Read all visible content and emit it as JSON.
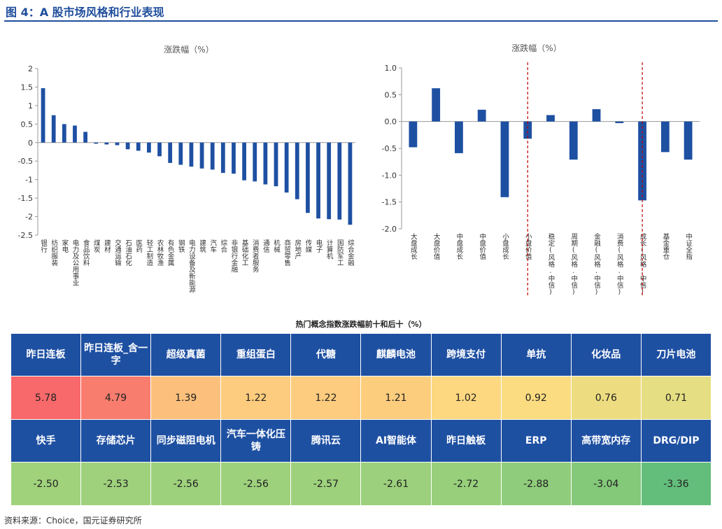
{
  "figure_title": "图 4：A 股市场风格和行业表现",
  "colors": {
    "bar": "#1e50a2",
    "header_bg": "#1e50a2",
    "divider": "#c00000"
  },
  "chart_data": [
    {
      "type": "bar",
      "title": "涨跌幅（%）",
      "ylim": [
        -2.5,
        2
      ],
      "yticks": [
        2,
        1.5,
        1,
        0.5,
        0,
        -0.5,
        -1,
        -1.5,
        -2,
        -2.5
      ],
      "categories": [
        "银行",
        "纺织服装",
        "家电",
        "电力及公用事业",
        "食品饮料",
        "煤炭",
        "建材",
        "交通运输",
        "石油石化",
        "医药",
        "轻工制造",
        "农林牧渔",
        "有色金属",
        "钢铁",
        "电力设备及新能源",
        "建筑",
        "汽车",
        "综合",
        "非银行金融",
        "基础化工",
        "消费者服务",
        "通信",
        "机械",
        "商贸零售",
        "房地产",
        "传媒",
        "电子",
        "计算机",
        "国防军工",
        "综合金融"
      ],
      "values": [
        1.47,
        0.74,
        0.5,
        0.46,
        0.29,
        -0.03,
        -0.05,
        -0.07,
        -0.18,
        -0.22,
        -0.27,
        -0.37,
        -0.55,
        -0.6,
        -0.65,
        -0.7,
        -0.73,
        -0.82,
        -0.84,
        -1.02,
        -1.05,
        -1.13,
        -1.18,
        -1.35,
        -1.53,
        -1.9,
        -2.05,
        -2.07,
        -2.08,
        -2.22
      ]
    },
    {
      "type": "bar",
      "title": "涨跌幅（%）",
      "ylim": [
        -2.0,
        1.0
      ],
      "yticks": [
        "1.0",
        "0.5",
        "0.0",
        "-0.5",
        "-1.0",
        "-1.5",
        "-2.0"
      ],
      "categories": [
        "大盘成长",
        "大盘价值",
        "中盘成长",
        "中盘价值",
        "小盘成长",
        "小盘价值",
        "稳定(风格.中信)",
        "周期(风格.中信)",
        "金融(风格.中信)",
        "消费(风格.中信)",
        "成长(风格.中信)",
        "基金重仓",
        "中证全指"
      ],
      "values": [
        -0.48,
        0.62,
        -0.59,
        0.22,
        -1.41,
        -0.32,
        0.12,
        -0.71,
        0.23,
        -0.03,
        -1.47,
        -0.57,
        -0.71
      ]
    }
  ],
  "table": {
    "caption": "热门概念指数涨跌幅前十和后十（%）",
    "top_names": [
      "昨日连板",
      "昨日连板_含一字",
      "超级真菌",
      "重组蛋白",
      "代糖",
      "麒麟电池",
      "跨境支付",
      "单抗",
      "化妆品",
      "刀片电池"
    ],
    "top_values": [
      "5.78",
      "4.79",
      "1.39",
      "1.22",
      "1.22",
      "1.21",
      "1.02",
      "0.92",
      "0.76",
      "0.71"
    ],
    "top_colors": [
      "#f8696b",
      "#f97d6e",
      "#fcc07c",
      "#fdcc7e",
      "#fdcc7e",
      "#fdcd7e",
      "#fed880",
      "#fbdc81",
      "#eedd80",
      "#e5de82"
    ],
    "bottom_names": [
      "快手",
      "存储芯片",
      "同步磁阻电机",
      "汽车一体化压铸",
      "腾讯云",
      "AI智能体",
      "昨日触板",
      "ERP",
      "高带宽内存",
      "DRG/DIP"
    ],
    "bottom_values": [
      "-2.50",
      "-2.53",
      "-2.56",
      "-2.56",
      "-2.57",
      "-2.61",
      "-2.72",
      "-2.88",
      "-3.04",
      "-3.36"
    ],
    "bottom_colors": [
      "#a0d27c",
      "#9fd17c",
      "#9ed17c",
      "#9ed17c",
      "#9ed17c",
      "#9cd07c",
      "#97cf7b",
      "#8fcc7b",
      "#84c87a",
      "#63be7b"
    ]
  },
  "source": "资料来源：Choice，国元证券研究所"
}
